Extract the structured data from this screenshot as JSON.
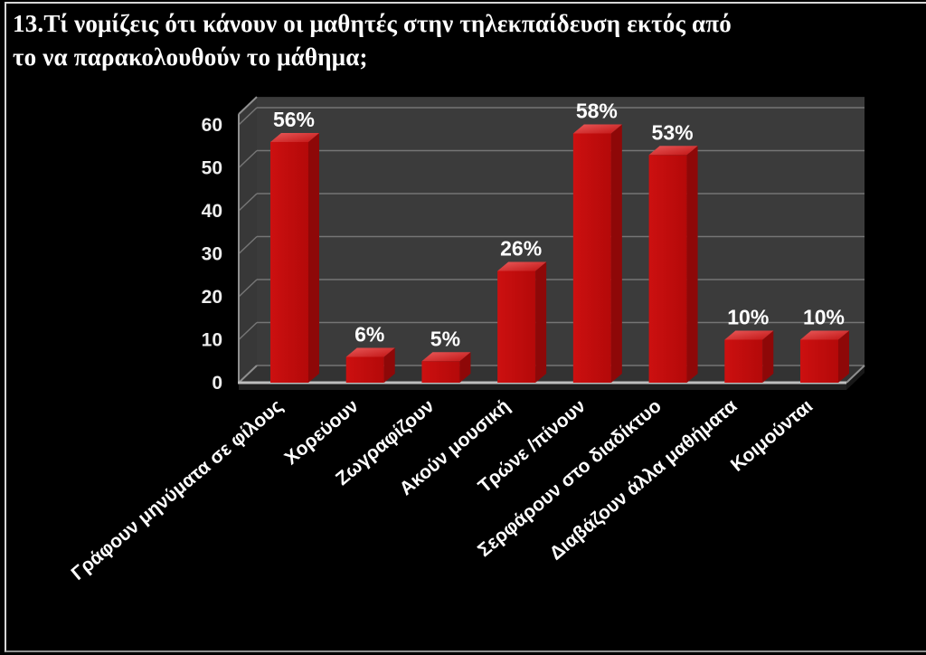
{
  "slide": {
    "background": "#000000",
    "border_color": "#d6d6d6",
    "title_line1": "13.Τί νομίζεις ότι κάνουν οι μαθητές στην τηλεκπαίδευση εκτός από",
    "title_line2": "το να παρακολουθούν το μάθημα;"
  },
  "chart_data": {
    "type": "bar",
    "style": "3d-column",
    "title": "13.Τί νομίζεις ότι κάνουν οι μαθητές στην τηλεκπαίδευση εκτός από το να παρακολουθούν το μάθημα;",
    "categories": [
      "Γράφουν μηνύματα σε φίλους",
      "Χορεύουν",
      "Ζωγραφίζουν",
      "Ακούν μουσική",
      "Τρώνε /πίνουν",
      "Σερφάρουν στο διαδίκτυο",
      "Διαβάζουν άλλα μαθήματα",
      "Κοιμούνται"
    ],
    "values": [
      56,
      6,
      5,
      26,
      58,
      53,
      10,
      10
    ],
    "value_labels": [
      "56%",
      "6%",
      "5%",
      "26%",
      "58%",
      "53%",
      "10%",
      "10%"
    ],
    "y_ticks": [
      0,
      10,
      20,
      30,
      40,
      50,
      60
    ],
    "ylim": [
      0,
      60
    ],
    "xlabel": "",
    "ylabel": "",
    "legend": "none",
    "grid": true,
    "colors": {
      "bar_front": "#cc1010",
      "bar_front_dark": "#b40909",
      "bar_top": "#e85a5a",
      "bar_top_dark": "#c21414",
      "bar_side": "#8e0808",
      "wall": "#3b3b3b",
      "left_wall": "#383838",
      "floor": "#333333",
      "slab_front": "#202020",
      "slab_side": "#181818",
      "gridline": "#757575",
      "edge_bright": "#bdbdbd",
      "edge": "#8f8f8f",
      "tick_label": "#ededed",
      "data_label": "#ffffff",
      "category_label": "#ffffff"
    }
  }
}
